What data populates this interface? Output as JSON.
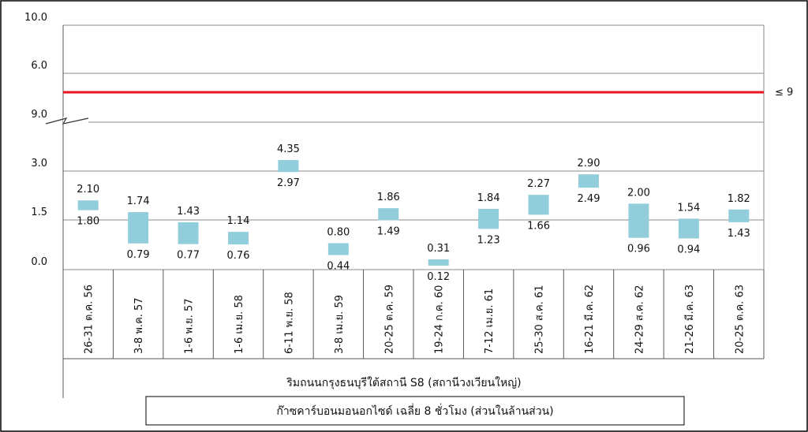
{
  "chart_data": {
    "type": "bar",
    "subtype": "floating-range",
    "y_axis": {
      "break": true,
      "upper_segment": {
        "ticks": [
          "10.0",
          "6.0"
        ],
        "range": [
          6.0,
          10.0
        ]
      },
      "lower_segment": {
        "ticks": [
          "9.0",
          "3.0",
          "1.5",
          "0.0"
        ],
        "range": [
          0.0,
          9.0
        ],
        "tick_values": [
          9.0,
          3.0,
          1.5,
          0.0
        ]
      }
    },
    "limit_line": {
      "value": 9,
      "label": "≤ 9",
      "color": "#e8141c"
    },
    "categories": [
      "26-31 ต.ค. 56",
      "3-8 พ.ค. 57",
      "1-6 พ.ย. 57",
      "1-6 เม.ย. 58",
      "6-11 พ.ย. 58",
      "3-8 เม.ย. 59",
      "20-25 ต.ค. 59",
      "19-24 ก.ค. 60",
      "7-12 เม.ย. 61",
      "25-30 ส.ค. 61",
      "16-21 มี.ค. 62",
      "24-29 ส.ค. 62",
      "21-26 มี.ค. 63",
      "20-25 ต.ค. 63"
    ],
    "series": [
      {
        "color": "#92cddc",
        "high": [
          2.1,
          1.74,
          1.43,
          1.14,
          4.35,
          0.8,
          1.86,
          0.31,
          1.84,
          2.27,
          2.9,
          2.0,
          1.54,
          1.82
        ],
        "low": [
          1.8,
          0.79,
          0.77,
          0.76,
          2.97,
          0.44,
          1.49,
          0.12,
          1.23,
          1.66,
          2.49,
          0.96,
          0.94,
          1.43
        ],
        "high_labels": [
          "2.10",
          "1.74",
          "1.43",
          "1.14",
          "4.35",
          "0.80",
          "1.86",
          "0.31",
          "1.84",
          "2.27",
          "2.90",
          "2.00",
          "1.54",
          "1.82"
        ],
        "low_labels": [
          "1.80",
          "0.79",
          "0.77",
          "0.76",
          "2.97",
          "0.44",
          "1.49",
          "0.12",
          "1.23",
          "1.66",
          "2.49",
          "0.96",
          "0.94",
          "1.43"
        ]
      }
    ],
    "xlabel": "ริมถนนกรุงธนบุรีใต้สถานี S8 (สถานีวงเวียนใหญ่)",
    "legend": "ก๊าซคาร์บอนมอนอกไซด์ เฉลี่ย 8 ชั่วโมง (ส่วนในล้านส่วน)",
    "grid": true
  }
}
